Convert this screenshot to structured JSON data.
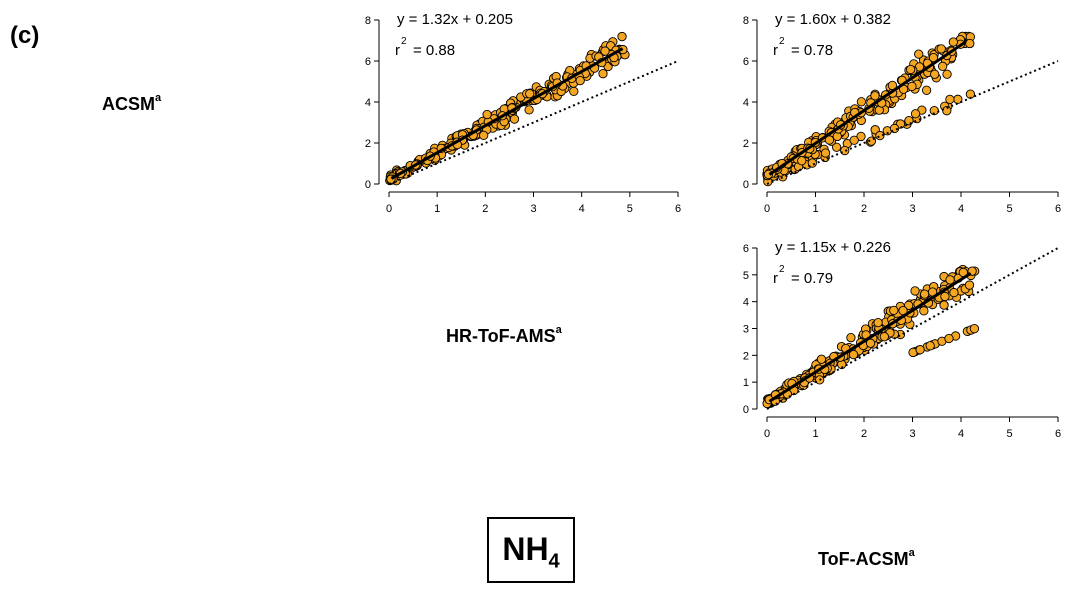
{
  "panel_label": "(c)",
  "species": {
    "main": "NH",
    "sub": "4"
  },
  "instruments": [
    {
      "name": "ACSM",
      "sup": "a"
    },
    {
      "name": "HR-ToF-AMS",
      "sup": "a"
    },
    {
      "name": "ToF-ACSM",
      "sup": "a"
    }
  ],
  "colors": {
    "marker_fill": "#F5A623",
    "marker_edge": "#000000",
    "fit_line": "#000000",
    "one_to_one": "#000000"
  },
  "chart_data": [
    {
      "type": "scatter",
      "row_label": "ACSM",
      "col_label": "HR-ToF-AMS",
      "equation": "y = 1.32x + 0.205",
      "r2_label": "r",
      "r2_sup": "2",
      "r2_value": "= 0.88",
      "slope": 1.32,
      "intercept": 0.205,
      "fit_x": [
        0.05,
        4.85
      ],
      "one_to_one": true,
      "xlim": [
        0,
        6
      ],
      "ylim": [
        0,
        8
      ],
      "xticks": [
        "0",
        "1",
        "2",
        "3",
        "4",
        "5",
        "6"
      ],
      "yticks": [
        "0",
        "2",
        "4",
        "6",
        "8"
      ],
      "x_max": 4.9,
      "spread": 0.55,
      "seed": 11
    },
    {
      "type": "scatter",
      "row_label": "ACSM",
      "col_label": "ToF-ACSM",
      "equation": "y = 1.60x + 0.382",
      "r2_label": "r",
      "r2_sup": "2",
      "r2_value": "= 0.78",
      "slope": 1.6,
      "intercept": 0.382,
      "fit_x": [
        0.05,
        4.1
      ],
      "one_to_one": true,
      "xlim": [
        0,
        6
      ],
      "ylim": [
        0,
        8
      ],
      "xticks": [
        "0",
        "1",
        "2",
        "3",
        "4",
        "5",
        "6"
      ],
      "yticks": [
        "0",
        "2",
        "4",
        "6",
        "8"
      ],
      "x_max": 4.3,
      "spread": 0.75,
      "seed": 23
    },
    {
      "type": "scatter",
      "row_label": "HR-ToF-AMS",
      "col_label": "ToF-ACSM",
      "equation": "y = 1.15x + 0.226",
      "r2_label": "r",
      "r2_sup": "2",
      "r2_value": "= 0.79",
      "slope": 1.15,
      "intercept": 0.226,
      "fit_x": [
        0.05,
        4.2
      ],
      "one_to_one": true,
      "xlim": [
        0,
        6
      ],
      "ylim": [
        0,
        6
      ],
      "xticks": [
        "0",
        "1",
        "2",
        "3",
        "4",
        "5",
        "6"
      ],
      "yticks": [
        "0",
        "1",
        "2",
        "3",
        "4",
        "5",
        "6"
      ],
      "x_max": 4.3,
      "spread": 0.55,
      "seed": 37
    }
  ]
}
